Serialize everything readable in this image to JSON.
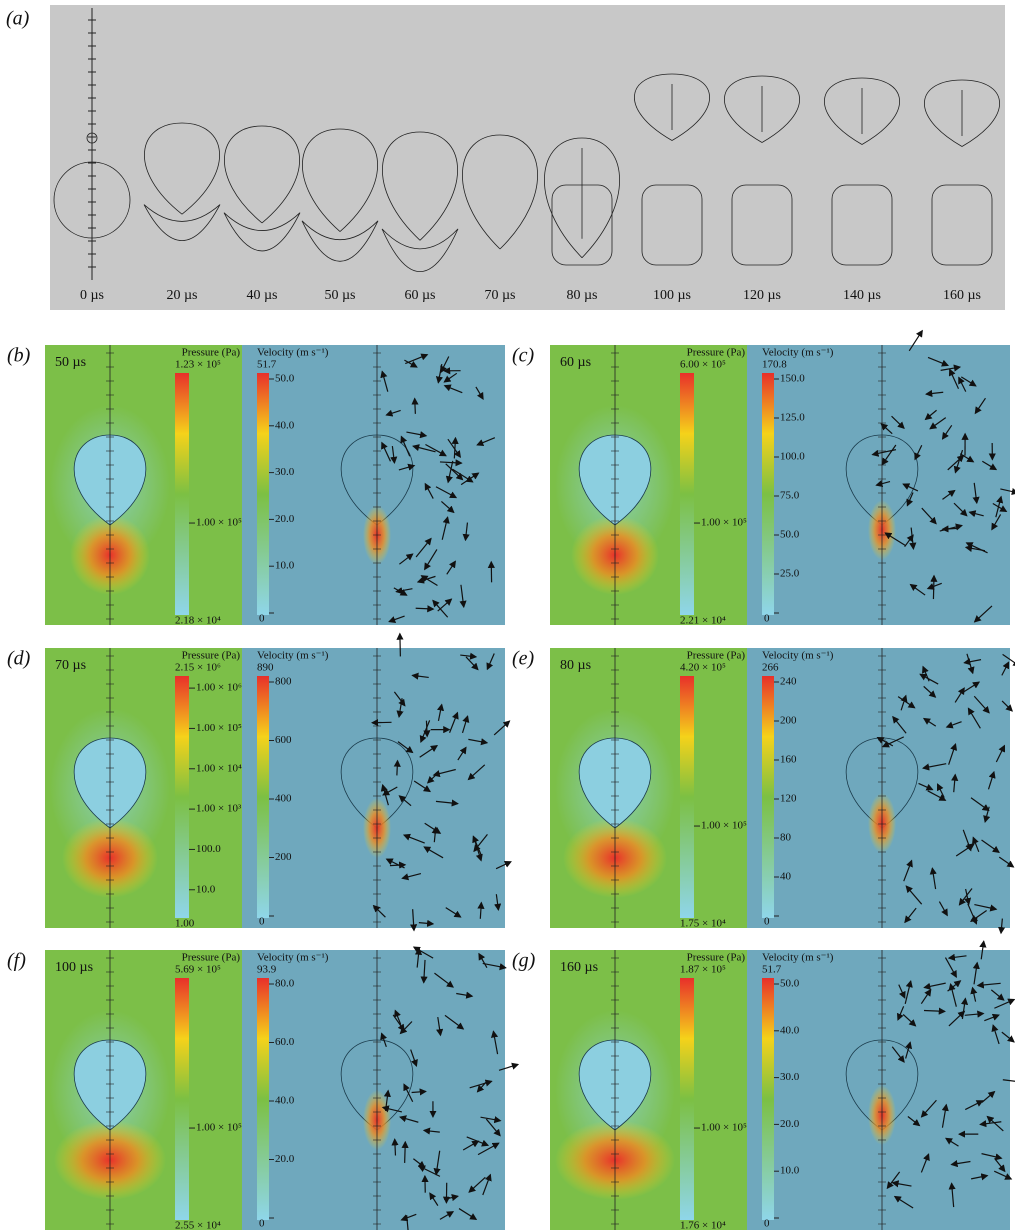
{
  "panel_a": {
    "label": "(a)",
    "times": [
      "0 µs",
      "20 µs",
      "40 µs",
      "50 µs",
      "60 µs",
      "70 µs",
      "80 µs",
      "100 µs",
      "120 µs",
      "140 µs",
      "160 µs"
    ]
  },
  "panels": [
    {
      "label": "(b)",
      "time": "50 µs",
      "pressure_title": "Pressure (Pa)",
      "pressure_max": "1.23 × 10⁵",
      "pressure_ticks": [
        "1.00 × 10⁵"
      ],
      "pressure_min": "2.18 × 10⁴",
      "velocity_title": "Velocity (m s⁻¹)",
      "velocity_max": "51.7",
      "velocity_ticks": [
        "50.0",
        "40.0",
        "30.0",
        "20.0",
        "10.0",
        "0"
      ]
    },
    {
      "label": "(c)",
      "time": "60 µs",
      "pressure_title": "Pressure (Pa)",
      "pressure_max": "6.00 × 10⁵",
      "pressure_ticks": [
        "1.00 × 10⁵"
      ],
      "pressure_min": "2.21 × 10⁴",
      "velocity_title": "Velocity (m s⁻¹)",
      "velocity_max": "170.8",
      "velocity_ticks": [
        "150.0",
        "125.0",
        "100.0",
        "75.0",
        "50.0",
        "25.0",
        "0"
      ]
    },
    {
      "label": "(d)",
      "time": "70 µs",
      "pressure_title": "Pressure (Pa)",
      "pressure_max": "2.15 × 10⁶",
      "pressure_ticks": [
        "1.00 × 10⁶",
        "1.00 × 10⁵",
        "1.00 × 10⁴",
        "1.00 × 10³",
        "100.0",
        "10.0"
      ],
      "pressure_min": "1.00",
      "velocity_title": "Velocity (m s⁻¹)",
      "velocity_max": "890",
      "velocity_ticks": [
        "800",
        "600",
        "400",
        "200",
        "0"
      ]
    },
    {
      "label": "(e)",
      "time": "80 µs",
      "pressure_title": "Pressure (Pa)",
      "pressure_max": "4.20 × 10⁵",
      "pressure_ticks": [
        "1.00 × 10⁵"
      ],
      "pressure_min": "1.75 × 10⁴",
      "velocity_title": "Velocity (m s⁻¹)",
      "velocity_max": "266",
      "velocity_ticks": [
        "240",
        "200",
        "160",
        "120",
        "80",
        "40",
        "0"
      ]
    },
    {
      "label": "(f)",
      "time": "100 µs",
      "pressure_title": "Pressure (Pa)",
      "pressure_max": "5.69 × 10⁵",
      "pressure_ticks": [
        "1.00 × 10⁵"
      ],
      "pressure_min": "2.55 × 10⁴",
      "velocity_title": "Velocity (m s⁻¹)",
      "velocity_max": "93.9",
      "velocity_ticks": [
        "80.0",
        "60.0",
        "40.0",
        "20.0",
        "0"
      ]
    },
    {
      "label": "(g)",
      "time": "160 µs",
      "pressure_title": "Pressure (Pa)",
      "pressure_max": "1.87 × 10⁵",
      "pressure_ticks": [
        "1.00 × 10⁵"
      ],
      "pressure_min": "1.76 × 10⁴",
      "velocity_title": "Velocity (m s⁻¹)",
      "velocity_max": "51.7",
      "velocity_ticks": [
        "50.0",
        "40.0",
        "30.0",
        "20.0",
        "10.0",
        "0"
      ]
    }
  ]
}
